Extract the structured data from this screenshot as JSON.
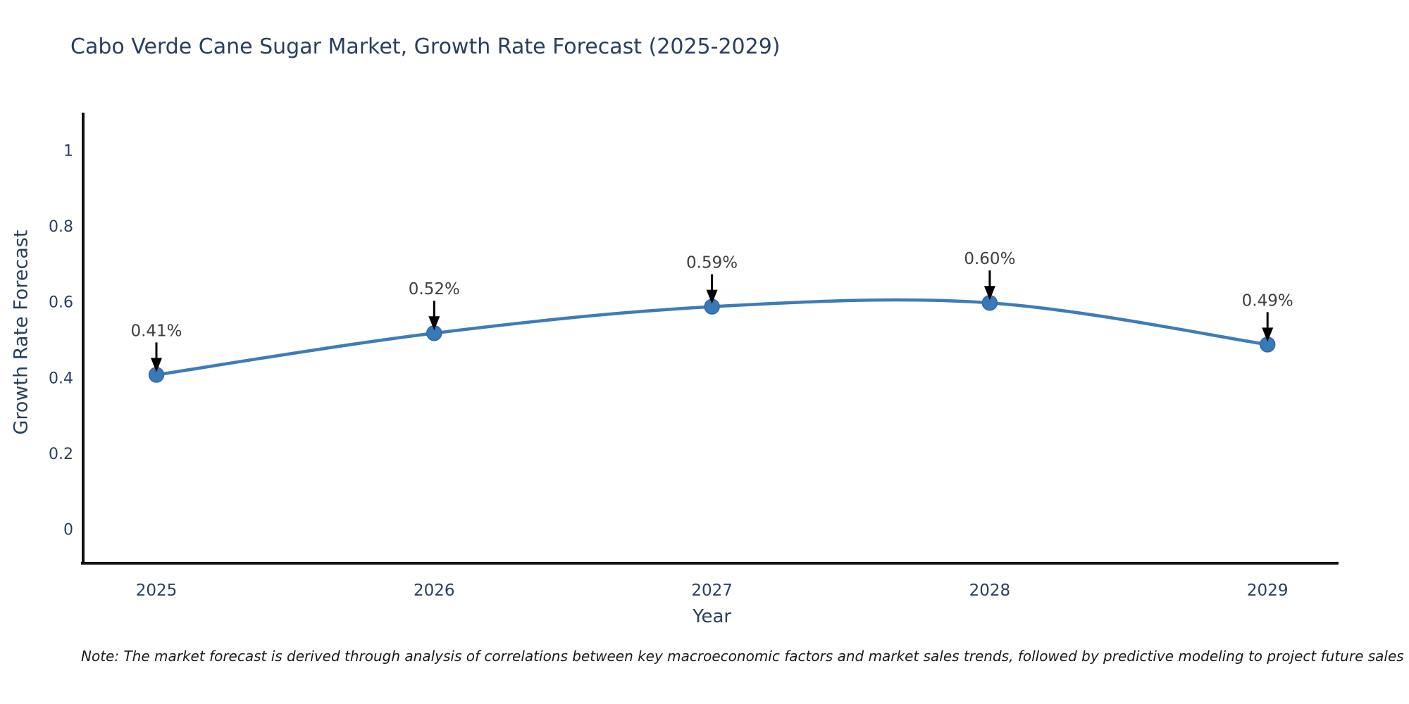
{
  "title": "Cabo Verde Cane Sugar Market, Growth Rate Forecast (2025-2029)",
  "note": "Note: The market forecast is derived through analysis of correlations between key macroeconomic factors and market sales trends, followed by predictive modeling to project future sales",
  "chart_data": {
    "type": "line",
    "title": "Cabo Verde Cane Sugar Market, Growth Rate Forecast (2025-2029)",
    "xlabel": "Year",
    "ylabel": "Growth Rate Forecast",
    "x": [
      2025,
      2026,
      2027,
      2028,
      2029
    ],
    "series": [
      {
        "name": "Growth Rate Forecast",
        "values": [
          0.41,
          0.52,
          0.59,
          0.6,
          0.49
        ]
      }
    ],
    "point_labels": [
      "0.41%",
      "0.52%",
      "0.59%",
      "0.60%",
      "0.49%"
    ],
    "yticks": [
      {
        "v": 0,
        "label": "0"
      },
      {
        "v": 0.2,
        "label": "0.2"
      },
      {
        "v": 0.4,
        "label": "0.4"
      },
      {
        "v": 0.6,
        "label": "0.6"
      },
      {
        "v": 0.8,
        "label": "0.8"
      },
      {
        "v": 1,
        "label": "1"
      }
    ],
    "ylim": [
      -0.09,
      1.19
    ],
    "line_shape": "spline",
    "grid": false,
    "legend": "none",
    "colors": {
      "line": "#3e7cb9",
      "marker": "#3879b9",
      "marker_edge": "#2f6ba6",
      "axis": "#111111",
      "label_text": "#2a3f5f",
      "annotation_text": "#3f3f3f",
      "arrow": "#000000"
    }
  }
}
